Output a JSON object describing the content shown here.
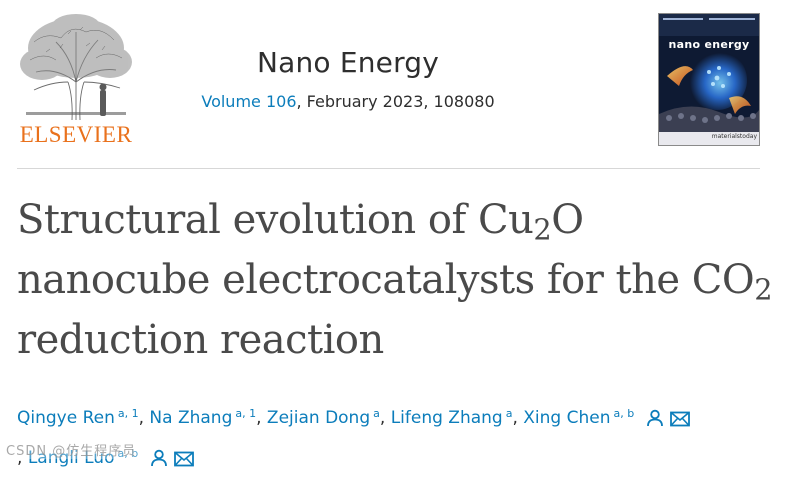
{
  "publisher": {
    "name": "ELSEVIER",
    "brand_color": "#e9711c"
  },
  "journal": {
    "title": "Nano Energy",
    "volume_label": "Volume 106",
    "issue_details": ", February 2023, 108080"
  },
  "cover": {
    "title": "nano energy",
    "footer": "materialstoday"
  },
  "article": {
    "title_line1_text": "Structural evolution of Cu",
    "title_line1_sub": "2",
    "title_line1_tail": "O",
    "title_line2_text": "nanocube electrocatalysts for the CO",
    "title_line2_sub": "2",
    "title_line3_text": "reduction reaction"
  },
  "authors": [
    {
      "name": "Qingye Ren",
      "aff": "a, 1",
      "sep": ", "
    },
    {
      "name": "Na Zhang",
      "aff": "a, 1",
      "sep": ", "
    },
    {
      "name": "Zejian Dong",
      "aff": "a",
      "sep": ", "
    },
    {
      "name": "Lifeng Zhang",
      "aff": "a",
      "sep": ", "
    },
    {
      "name": "Xing Chen",
      "aff": "a, b",
      "sep": ""
    },
    {
      "name": "Langli Luo",
      "aff": "a, b",
      "sep": ""
    }
  ],
  "author_leading_separator": ", ",
  "watermark": "CSDN @仿生程序员",
  "colors": {
    "link": "#0c7dbb",
    "title_text": "#4a4a4a",
    "rule": "#d7d7d7"
  },
  "icons": [
    "elsevier-tree-logo",
    "person-icon",
    "envelope-icon"
  ]
}
